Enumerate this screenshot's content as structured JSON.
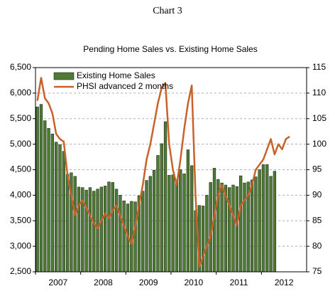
{
  "chart_data": {
    "type": "bar",
    "title": "Chart 3",
    "subtitle": "Pending Home Sales vs. Existing Home Sales",
    "categories": [
      null,
      null,
      null,
      null,
      null,
      null,
      "2007",
      null,
      null,
      null,
      null,
      null,
      null,
      null,
      null,
      null,
      null,
      null,
      "2008",
      null,
      null,
      null,
      null,
      null,
      null,
      null,
      null,
      null,
      null,
      null,
      "2009",
      null,
      null,
      null,
      null,
      null,
      null,
      null,
      null,
      null,
      null,
      null,
      "2010",
      null,
      null,
      null,
      null,
      null,
      null,
      null,
      null,
      null,
      null,
      null,
      "2011",
      null,
      null,
      null,
      null,
      null,
      null,
      null,
      null,
      null,
      null,
      null,
      "2012",
      null,
      null,
      null,
      null,
      null
    ],
    "series": [
      {
        "name": "Existing Home Sales",
        "type": "bar",
        "color": "#4f7a36",
        "values": [
          5730,
          5780,
          5460,
          5310,
          5200,
          5040,
          4990,
          4860,
          4410,
          4440,
          4370,
          4160,
          4150,
          4100,
          4150,
          4080,
          4120,
          4160,
          4180,
          4260,
          4250,
          4120,
          4000,
          3890,
          3830,
          3880,
          3870,
          3990,
          4080,
          4290,
          4370,
          4490,
          4780,
          5010,
          5440,
          4390,
          4400,
          4300,
          4500,
          4420,
          4890,
          4580,
          3700,
          3800,
          3790,
          4000,
          4250,
          4530,
          4310,
          4240,
          4200,
          4150,
          4200,
          4170,
          4380,
          4240,
          4260,
          4300,
          4360,
          4500,
          4600,
          4600,
          4370,
          4470,
          null,
          null,
          null,
          null,
          null,
          null,
          null,
          null
        ]
      },
      {
        "name": "PHSI advanced 2 months",
        "type": "line",
        "axis": "y2",
        "color": "#c8622a",
        "values": [
          108.5,
          113,
          109,
          108,
          106,
          102,
          101,
          100.5,
          94,
          90,
          86,
          88,
          89,
          87.5,
          86,
          84.5,
          83.5,
          85,
          86.5,
          85.5,
          87,
          88,
          86,
          84,
          82,
          80.5,
          84,
          88,
          92,
          97,
          100,
          104,
          108,
          111,
          112,
          100,
          95,
          92,
          97,
          103,
          108,
          111.5,
          90,
          76,
          78,
          80,
          82,
          86,
          90,
          92,
          90,
          88,
          86,
          84,
          88,
          89,
          90,
          92,
          95,
          96,
          97,
          99,
          101,
          98,
          100,
          99,
          101,
          101.5,
          null,
          null,
          null,
          null
        ]
      }
    ],
    "ylim": [
      2500,
      6500
    ],
    "yticks": [
      {
        "value": 2500,
        "label": "2,500"
      },
      {
        "value": 3000,
        "label": "3,000"
      },
      {
        "value": 3500,
        "label": "3,500"
      },
      {
        "value": 4000,
        "label": "4,000"
      },
      {
        "value": 4500,
        "label": "4,500"
      },
      {
        "value": 5000,
        "label": "5,000"
      },
      {
        "value": 5500,
        "label": "5,500"
      },
      {
        "value": 6000,
        "label": "6,000"
      },
      {
        "value": 6500,
        "label": "6,500"
      }
    ],
    "y2lim": [
      75,
      115
    ],
    "y2ticks": [
      75,
      80,
      85,
      90,
      95,
      100,
      105,
      110,
      115
    ],
    "grid": true,
    "legend": "top-left"
  }
}
